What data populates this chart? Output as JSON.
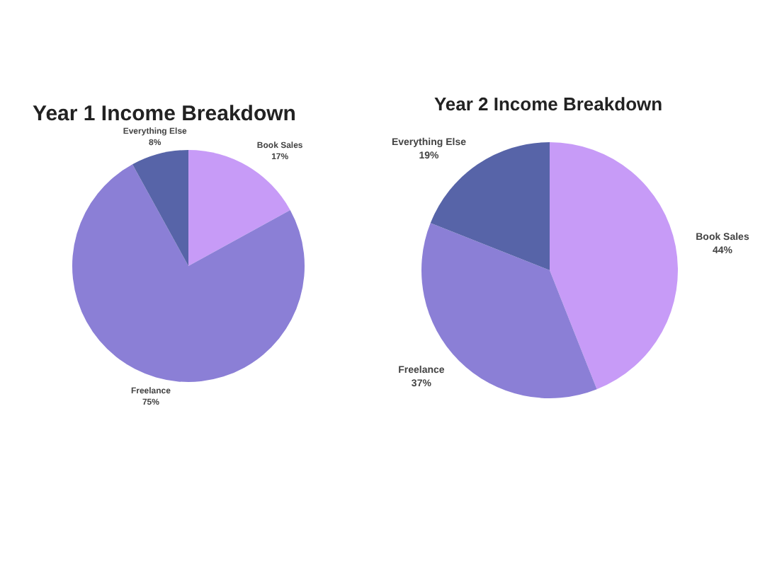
{
  "chart_data": [
    {
      "type": "pie",
      "title": "Year 1 Income Breakdown",
      "categories": [
        "Book Sales",
        "Freelance",
        "Everything Else"
      ],
      "values": [
        17,
        75,
        8
      ],
      "colors": [
        "#c79bf7",
        "#8b7fd6",
        "#5764a8"
      ],
      "value_labels": [
        "17%",
        "75%",
        "8%"
      ]
    },
    {
      "type": "pie",
      "title": "Year 2 Income Breakdown",
      "categories": [
        "Book Sales",
        "Freelance",
        "Everything Else"
      ],
      "values": [
        44,
        37,
        19
      ],
      "colors": [
        "#c79bf7",
        "#8b7fd6",
        "#5764a8"
      ],
      "value_labels": [
        "44%",
        "37%",
        "19%"
      ]
    }
  ]
}
